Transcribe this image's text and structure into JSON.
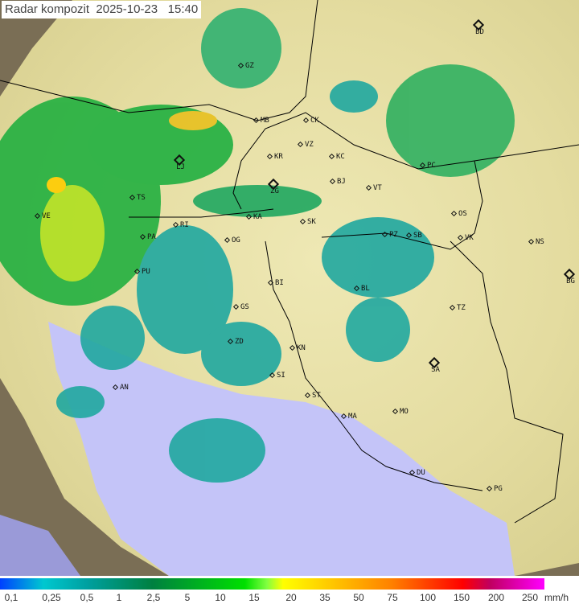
{
  "header": {
    "title": "Radar kompozit",
    "date": "2025-10-23",
    "time": "15:40"
  },
  "legend": {
    "ticks": [
      "0,1",
      "0,25",
      "0,5",
      "1",
      "2,5",
      "5",
      "10",
      "15",
      "20",
      "35",
      "50",
      "75",
      "100",
      "150",
      "200",
      "250"
    ],
    "unit": "mm/h"
  },
  "colors": {
    "sea": "#c4c4f8",
    "land": "#e8e0a8",
    "out_of_range": "#7a6e55",
    "rain_light": "#00b4b4",
    "rain_mid": "#00a040",
    "rain_heavy": "#ffcc00"
  },
  "capitals": [
    "BD",
    "LJ",
    "ZG",
    "BG",
    "SA",
    "PG"
  ],
  "cities": [
    "GZ",
    "MB",
    "CK",
    "VZ",
    "KR",
    "KC",
    "PC",
    "BJ",
    "VT",
    "TS",
    "VE",
    "RI",
    "KA",
    "SK",
    "OS",
    "PA",
    "OG",
    "PZ",
    "SB",
    "VK",
    "NS",
    "PU",
    "BI",
    "BL",
    "TZ",
    "GS",
    "ZD",
    "KN",
    "SI",
    "AN",
    "ST",
    "MA",
    "MO",
    "DU"
  ]
}
